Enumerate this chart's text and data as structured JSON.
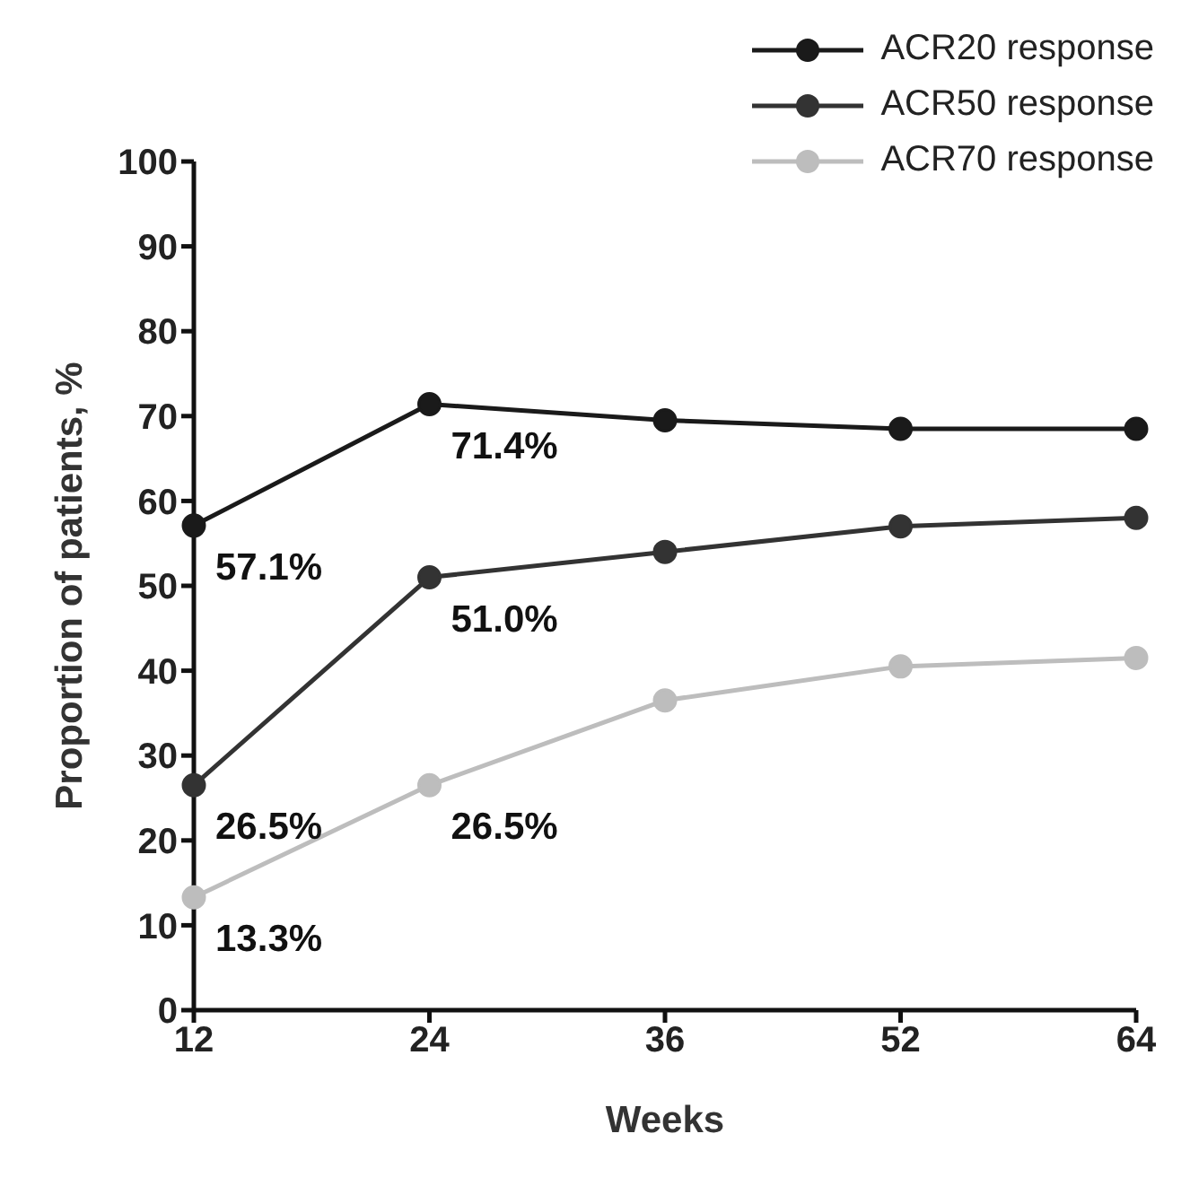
{
  "chart_data": {
    "type": "line",
    "xlabel": "Weeks",
    "ylabel": "Proportion of patients, %",
    "categories": [
      "12",
      "24",
      "36",
      "52",
      "64"
    ],
    "series": [
      {
        "name": "ACR20 response",
        "color": "#1a1a1a",
        "values": [
          57.1,
          71.4,
          69.5,
          68.5,
          68.5
        ],
        "value_labels": [
          "57.1%",
          "71.4%",
          null,
          null,
          null
        ]
      },
      {
        "name": "ACR50 response",
        "color": "#333333",
        "values": [
          26.5,
          51.0,
          54,
          57,
          58
        ],
        "value_labels": [
          "26.5%",
          "51.0%",
          null,
          null,
          null
        ]
      },
      {
        "name": "ACR70 response",
        "color": "#bdbdbd",
        "values": [
          13.3,
          26.5,
          36.5,
          40.5,
          41.5
        ],
        "value_labels": [
          "13.3%",
          "26.5%",
          null,
          null,
          null
        ]
      }
    ],
    "ylim": [
      0,
      100
    ],
    "yticks": [
      0,
      10,
      20,
      30,
      40,
      50,
      60,
      70,
      80,
      90,
      100
    ],
    "grid": false,
    "legend": "top right",
    "marker": "circle",
    "line_style": "solid"
  }
}
